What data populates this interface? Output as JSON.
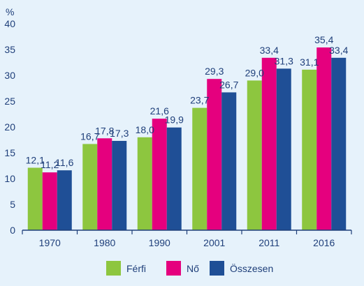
{
  "chart_data": {
    "type": "bar",
    "ylabel": "%",
    "categories": [
      "1970",
      "1980",
      "1990",
      "2001",
      "2011",
      "2016"
    ],
    "yticks": [
      "0",
      "5",
      "10",
      "15",
      "20",
      "25",
      "30",
      "35",
      "40"
    ],
    "ylim": [
      0,
      40
    ],
    "grid": false,
    "legend_position": "bottom",
    "series": [
      {
        "name": "Férfi",
        "color": "#8dc63f",
        "values": [
          12.1,
          16.7,
          18.0,
          23.7,
          29.0,
          31.1
        ],
        "labels": [
          "12,1",
          "16,7",
          "18,0",
          "23,7",
          "29,0",
          "31,1"
        ]
      },
      {
        "name": "Nő",
        "color": "#e5007e",
        "values": [
          11.2,
          17.8,
          21.6,
          29.3,
          33.4,
          35.4
        ],
        "labels": [
          "11,2",
          "17,8",
          "21,6",
          "29,3",
          "33,4",
          "35,4"
        ]
      },
      {
        "name": "Összesen",
        "color": "#1f4f96",
        "values": [
          11.6,
          17.3,
          19.9,
          26.7,
          31.3,
          33.4
        ],
        "labels": [
          "11,6",
          "17,3",
          "19,9",
          "26,7",
          "31,3",
          "33,4"
        ]
      }
    ],
    "colors": {
      "axis": "#1f3f7a",
      "label_text": "#1f3f7a",
      "background": "#e6f2fb"
    }
  }
}
